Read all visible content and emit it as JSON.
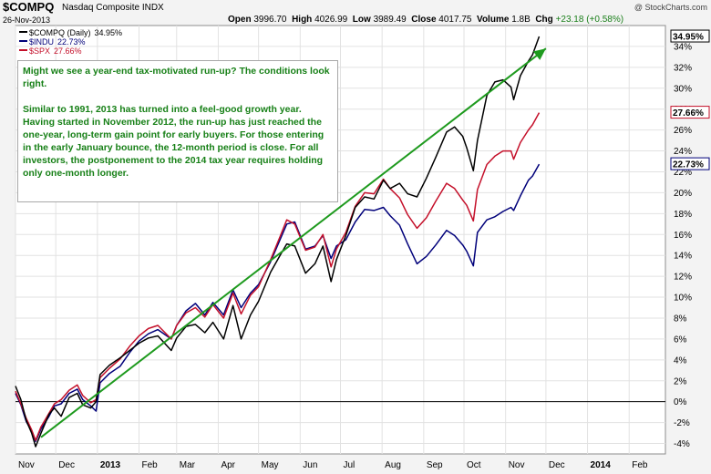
{
  "header": {
    "ticker": "$COMPQ",
    "name": "Nasdaq Composite  INDX",
    "date": "26-Nov-2013",
    "credit": "@ StockCharts.com",
    "quote": {
      "open_label": "Open",
      "open": "3996.70",
      "high_label": "High",
      "high": "4026.99",
      "low_label": "Low",
      "low": "3989.49",
      "close_label": "Close",
      "close": "4017.75",
      "volume_label": "Volume",
      "volume": "1.8B",
      "chg_label": "Chg",
      "chg": "+23.18 (+0.58%)"
    }
  },
  "annotation": {
    "p1": "Might we see a year-end tax-motivated run-up? The conditions look right.",
    "p2": "Similar to 1991, 2013 has turned into a feel-good growth year. Having started in November 2012, the run-up has just reached the one-year, long-term gain point for early buyers. For those entering in the early January bounce, the 12-month period is close. For all investors, the postponement to the 2014 tax year requires holding only one-month longer.",
    "color": "#178017"
  },
  "colors": {
    "compq": "#000000",
    "indu": "#00007a",
    "spx": "#c4102a",
    "trend": "#1e9a1e",
    "zero": "#000000"
  },
  "chart_data": {
    "type": "line",
    "x_start": "2012-11-01",
    "x_end": "2014-02-28",
    "ylim": [
      -5,
      36
    ],
    "yticks": [
      -4,
      -2,
      0,
      2,
      4,
      6,
      8,
      10,
      12,
      14,
      16,
      18,
      20,
      22,
      24,
      26,
      28,
      30,
      32,
      34
    ],
    "ytick_labels": [
      "-4%",
      "-2%",
      "0%",
      "2%",
      "4%",
      "6%",
      "8%",
      "10%",
      "12%",
      "14%",
      "16%",
      "18%",
      "20%",
      "22%",
      "24%",
      "26%",
      "28%",
      "30%",
      "32%",
      "34%"
    ],
    "xticks": [
      {
        "date": "2012-11-01",
        "label": "Nov",
        "bold": false
      },
      {
        "date": "2012-12-01",
        "label": "Dec",
        "bold": false
      },
      {
        "date": "2013-01-01",
        "label": "2013",
        "bold": true
      },
      {
        "date": "2013-02-01",
        "label": "Feb",
        "bold": false
      },
      {
        "date": "2013-03-01",
        "label": "Mar",
        "bold": false
      },
      {
        "date": "2013-04-01",
        "label": "Apr",
        "bold": false
      },
      {
        "date": "2013-05-01",
        "label": "May",
        "bold": false
      },
      {
        "date": "2013-06-01",
        "label": "Jun",
        "bold": false
      },
      {
        "date": "2013-07-01",
        "label": "Jul",
        "bold": false
      },
      {
        "date": "2013-08-01",
        "label": "Aug",
        "bold": false
      },
      {
        "date": "2013-09-01",
        "label": "Sep",
        "bold": false
      },
      {
        "date": "2013-10-01",
        "label": "Oct",
        "bold": false
      },
      {
        "date": "2013-11-01",
        "label": "Nov",
        "bold": false
      },
      {
        "date": "2013-12-01",
        "label": "Dec",
        "bold": false
      },
      {
        "date": "2014-01-01",
        "label": "2014",
        "bold": true
      },
      {
        "date": "2014-02-01",
        "label": "Feb",
        "bold": false
      }
    ],
    "grid": true,
    "legend_position": "top-left",
    "series": [
      {
        "name": "$COMPQ (Daily)",
        "value_label": "34.95%",
        "color_key": "compq",
        "last_label": "34.95%",
        "points": [
          [
            "2012-11-01",
            1.5
          ],
          [
            "2012-11-05",
            0.2
          ],
          [
            "2012-11-09",
            -1.8
          ],
          [
            "2012-11-13",
            -3.0
          ],
          [
            "2012-11-16",
            -4.3
          ],
          [
            "2012-11-20",
            -3.0
          ],
          [
            "2012-11-26",
            -1.2
          ],
          [
            "2012-11-30",
            -0.6
          ],
          [
            "2012-12-05",
            -1.4
          ],
          [
            "2012-12-11",
            0.4
          ],
          [
            "2012-12-17",
            0.8
          ],
          [
            "2012-12-21",
            -0.3
          ],
          [
            "2012-12-27",
            -0.6
          ],
          [
            "2012-12-31",
            0.0
          ],
          [
            "2013-01-03",
            2.6
          ],
          [
            "2013-01-10",
            3.5
          ],
          [
            "2013-01-18",
            4.2
          ],
          [
            "2013-01-25",
            4.9
          ],
          [
            "2013-02-01",
            5.6
          ],
          [
            "2013-02-08",
            6.1
          ],
          [
            "2013-02-15",
            6.3
          ],
          [
            "2013-02-25",
            4.9
          ],
          [
            "2013-03-01",
            6.1
          ],
          [
            "2013-03-08",
            7.2
          ],
          [
            "2013-03-15",
            7.4
          ],
          [
            "2013-03-22",
            6.6
          ],
          [
            "2013-03-28",
            7.6
          ],
          [
            "2013-04-05",
            6.0
          ],
          [
            "2013-04-12",
            9.2
          ],
          [
            "2013-04-18",
            6.0
          ],
          [
            "2013-04-25",
            8.3
          ],
          [
            "2013-05-01",
            9.6
          ],
          [
            "2013-05-10",
            12.4
          ],
          [
            "2013-05-17",
            14.0
          ],
          [
            "2013-05-22",
            15.1
          ],
          [
            "2013-05-28",
            14.9
          ],
          [
            "2013-06-05",
            12.3
          ],
          [
            "2013-06-12",
            13.2
          ],
          [
            "2013-06-18",
            14.9
          ],
          [
            "2013-06-24",
            11.5
          ],
          [
            "2013-06-28",
            13.6
          ],
          [
            "2013-07-05",
            15.9
          ],
          [
            "2013-07-12",
            18.6
          ],
          [
            "2013-07-19",
            19.6
          ],
          [
            "2013-07-26",
            19.4
          ],
          [
            "2013-08-02",
            21.2
          ],
          [
            "2013-08-07",
            20.4
          ],
          [
            "2013-08-14",
            20.9
          ],
          [
            "2013-08-20",
            19.9
          ],
          [
            "2013-08-27",
            19.6
          ],
          [
            "2013-09-03",
            21.4
          ],
          [
            "2013-09-10",
            23.4
          ],
          [
            "2013-09-18",
            25.8
          ],
          [
            "2013-09-24",
            26.3
          ],
          [
            "2013-09-30",
            25.4
          ],
          [
            "2013-10-03",
            24.3
          ],
          [
            "2013-10-08",
            22.1
          ],
          [
            "2013-10-11",
            25.0
          ],
          [
            "2013-10-18",
            29.3
          ],
          [
            "2013-10-24",
            30.6
          ],
          [
            "2013-10-30",
            30.8
          ],
          [
            "2013-11-05",
            30.1
          ],
          [
            "2013-11-07",
            28.9
          ],
          [
            "2013-11-12",
            31.2
          ],
          [
            "2013-11-18",
            32.6
          ],
          [
            "2013-11-21",
            33.2
          ],
          [
            "2013-11-26",
            34.95
          ]
        ]
      },
      {
        "name": "$INDU",
        "value_label": "22.73%",
        "color_key": "indu",
        "last_label": "22.73%",
        "points": [
          [
            "2012-11-01",
            0.8
          ],
          [
            "2012-11-05",
            -0.3
          ],
          [
            "2012-11-09",
            -1.9
          ],
          [
            "2012-11-13",
            -2.8
          ],
          [
            "2012-11-16",
            -3.8
          ],
          [
            "2012-11-20",
            -2.6
          ],
          [
            "2012-11-26",
            -1.4
          ],
          [
            "2012-11-30",
            -0.4
          ],
          [
            "2012-12-05",
            -0.2
          ],
          [
            "2012-12-11",
            0.8
          ],
          [
            "2012-12-17",
            1.2
          ],
          [
            "2012-12-21",
            0.2
          ],
          [
            "2012-12-27",
            -0.4
          ],
          [
            "2012-12-31",
            -0.9
          ],
          [
            "2013-01-03",
            1.8
          ],
          [
            "2013-01-10",
            2.7
          ],
          [
            "2013-01-18",
            3.4
          ],
          [
            "2013-01-25",
            4.7
          ],
          [
            "2013-02-01",
            5.8
          ],
          [
            "2013-02-08",
            6.5
          ],
          [
            "2013-02-15",
            6.9
          ],
          [
            "2013-02-25",
            6.0
          ],
          [
            "2013-03-01",
            7.3
          ],
          [
            "2013-03-08",
            8.7
          ],
          [
            "2013-03-15",
            9.4
          ],
          [
            "2013-03-22",
            8.3
          ],
          [
            "2013-03-28",
            9.5
          ],
          [
            "2013-04-05",
            8.3
          ],
          [
            "2013-04-12",
            10.7
          ],
          [
            "2013-04-18",
            9.0
          ],
          [
            "2013-04-25",
            10.4
          ],
          [
            "2013-05-01",
            11.2
          ],
          [
            "2013-05-10",
            13.4
          ],
          [
            "2013-05-17",
            15.5
          ],
          [
            "2013-05-22",
            17.0
          ],
          [
            "2013-05-28",
            17.2
          ],
          [
            "2013-06-05",
            14.6
          ],
          [
            "2013-06-12",
            14.9
          ],
          [
            "2013-06-18",
            15.9
          ],
          [
            "2013-06-24",
            13.7
          ],
          [
            "2013-06-28",
            14.9
          ],
          [
            "2013-07-05",
            15.5
          ],
          [
            "2013-07-12",
            17.2
          ],
          [
            "2013-07-19",
            18.4
          ],
          [
            "2013-07-26",
            18.3
          ],
          [
            "2013-08-02",
            18.6
          ],
          [
            "2013-08-07",
            17.8
          ],
          [
            "2013-08-14",
            16.9
          ],
          [
            "2013-08-20",
            15.1
          ],
          [
            "2013-08-27",
            13.2
          ],
          [
            "2013-09-03",
            13.9
          ],
          [
            "2013-09-10",
            15.0
          ],
          [
            "2013-09-18",
            16.4
          ],
          [
            "2013-09-24",
            15.9
          ],
          [
            "2013-09-30",
            15.0
          ],
          [
            "2013-10-03",
            14.4
          ],
          [
            "2013-10-08",
            13.0
          ],
          [
            "2013-10-11",
            16.2
          ],
          [
            "2013-10-18",
            17.4
          ],
          [
            "2013-10-24",
            17.7
          ],
          [
            "2013-10-30",
            18.2
          ],
          [
            "2013-11-05",
            18.6
          ],
          [
            "2013-11-07",
            18.3
          ],
          [
            "2013-11-12",
            19.7
          ],
          [
            "2013-11-18",
            21.2
          ],
          [
            "2013-11-21",
            21.6
          ],
          [
            "2013-11-26",
            22.73
          ]
        ]
      },
      {
        "name": "$SPX",
        "value_label": "27.66%",
        "color_key": "spx",
        "last_label": "27.66%",
        "points": [
          [
            "2012-11-01",
            1.0
          ],
          [
            "2012-11-05",
            -0.2
          ],
          [
            "2012-11-09",
            -1.6
          ],
          [
            "2012-11-13",
            -2.7
          ],
          [
            "2012-11-16",
            -3.7
          ],
          [
            "2012-11-20",
            -2.4
          ],
          [
            "2012-11-26",
            -1.1
          ],
          [
            "2012-11-30",
            -0.2
          ],
          [
            "2012-12-05",
            0.2
          ],
          [
            "2012-12-11",
            1.1
          ],
          [
            "2012-12-17",
            1.6
          ],
          [
            "2012-12-21",
            0.6
          ],
          [
            "2012-12-27",
            -0.1
          ],
          [
            "2012-12-31",
            0.2
          ],
          [
            "2013-01-03",
            2.3
          ],
          [
            "2013-01-10",
            3.2
          ],
          [
            "2013-01-18",
            4.1
          ],
          [
            "2013-01-25",
            5.3
          ],
          [
            "2013-02-01",
            6.3
          ],
          [
            "2013-02-08",
            7.0
          ],
          [
            "2013-02-15",
            7.3
          ],
          [
            "2013-02-25",
            6.0
          ],
          [
            "2013-03-01",
            7.3
          ],
          [
            "2013-03-08",
            8.5
          ],
          [
            "2013-03-15",
            9.0
          ],
          [
            "2013-03-22",
            8.1
          ],
          [
            "2013-03-28",
            9.3
          ],
          [
            "2013-04-05",
            8.0
          ],
          [
            "2013-04-12",
            10.4
          ],
          [
            "2013-04-18",
            8.4
          ],
          [
            "2013-04-25",
            10.2
          ],
          [
            "2013-05-01",
            11.0
          ],
          [
            "2013-05-10",
            13.6
          ],
          [
            "2013-05-17",
            15.8
          ],
          [
            "2013-05-22",
            17.4
          ],
          [
            "2013-05-28",
            17.0
          ],
          [
            "2013-06-05",
            14.5
          ],
          [
            "2013-06-12",
            14.8
          ],
          [
            "2013-06-18",
            16.0
          ],
          [
            "2013-06-24",
            12.9
          ],
          [
            "2013-06-28",
            14.6
          ],
          [
            "2013-07-05",
            16.2
          ],
          [
            "2013-07-12",
            18.7
          ],
          [
            "2013-07-19",
            20.0
          ],
          [
            "2013-07-26",
            19.9
          ],
          [
            "2013-08-02",
            21.3
          ],
          [
            "2013-08-07",
            20.4
          ],
          [
            "2013-08-14",
            19.5
          ],
          [
            "2013-08-20",
            17.9
          ],
          [
            "2013-08-27",
            16.6
          ],
          [
            "2013-09-03",
            17.6
          ],
          [
            "2013-09-10",
            19.2
          ],
          [
            "2013-09-18",
            20.9
          ],
          [
            "2013-09-24",
            20.4
          ],
          [
            "2013-09-30",
            19.3
          ],
          [
            "2013-10-03",
            18.8
          ],
          [
            "2013-10-08",
            17.3
          ],
          [
            "2013-10-11",
            20.3
          ],
          [
            "2013-10-18",
            22.7
          ],
          [
            "2013-10-24",
            23.5
          ],
          [
            "2013-10-30",
            24.0
          ],
          [
            "2013-11-05",
            24.0
          ],
          [
            "2013-11-07",
            23.2
          ],
          [
            "2013-11-12",
            24.8
          ],
          [
            "2013-11-18",
            26.0
          ],
          [
            "2013-11-21",
            26.5
          ],
          [
            "2013-11-26",
            27.66
          ]
        ]
      }
    ],
    "trendline": {
      "from": [
        "2012-11-20",
        -3.4
      ],
      "to": [
        "2013-12-01",
        33.8
      ],
      "arrow": true
    }
  }
}
